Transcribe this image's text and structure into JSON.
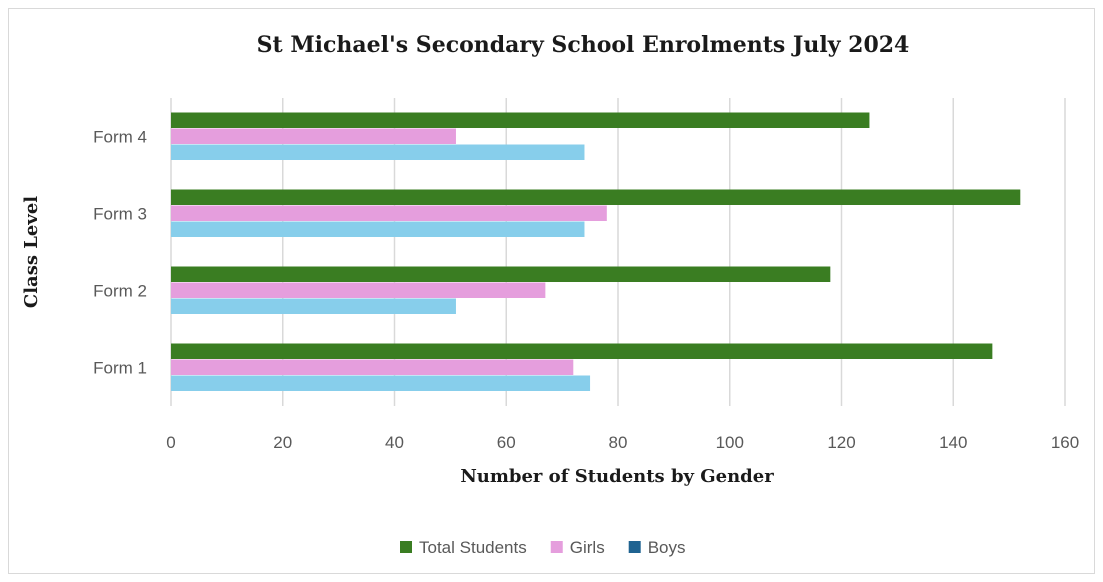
{
  "chart_data": {
    "type": "bar",
    "orientation": "horizontal",
    "title": "St Michael's Secondary School Enrolments July 2024",
    "xlabel": "Number of Students by Gender",
    "ylabel": "Class Level",
    "categories": [
      "Form 1",
      "Form 2",
      "Form 3",
      "Form 4"
    ],
    "xlim": [
      0,
      160
    ],
    "xticks": [
      "0",
      "20",
      "40",
      "60",
      "80",
      "100",
      "120",
      "140",
      "160"
    ],
    "grid": true,
    "legend_position": "bottom",
    "series": [
      {
        "name": "Boys",
        "values": [
          75,
          51,
          74,
          74
        ],
        "color": "#87ceeb",
        "legend_color": "#1f6391"
      },
      {
        "name": "Girls",
        "values": [
          72,
          67,
          78,
          51
        ],
        "color": "#e59edd"
      },
      {
        "name": "Total Students",
        "values": [
          147,
          118,
          152,
          125
        ],
        "color": "#3a7d22"
      }
    ],
    "legend_order": [
      "Total Students",
      "Girls",
      "Boys"
    ]
  }
}
